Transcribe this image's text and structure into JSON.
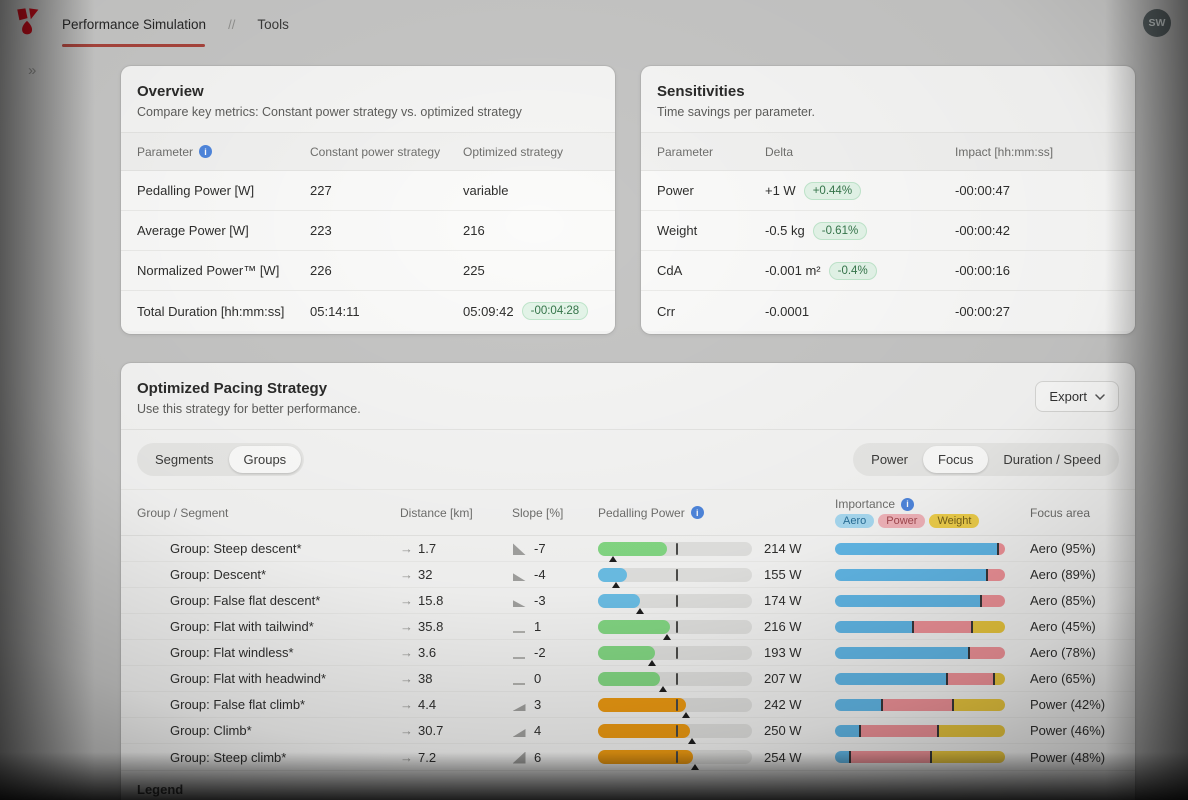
{
  "nav": {
    "tabs": [
      {
        "label": "Performance Simulation",
        "active": true
      },
      {
        "label": "Tools",
        "active": false
      }
    ],
    "separator": "//",
    "avatar": "SW"
  },
  "overview": {
    "title": "Overview",
    "subtitle": "Compare key metrics: Constant power strategy vs. optimized strategy",
    "columns": [
      "Parameter",
      "Constant power strategy",
      "Optimized strategy"
    ],
    "rows": [
      {
        "parameter": "Pedalling Power [W]",
        "constant": "227",
        "optimized": "variable",
        "badge": ""
      },
      {
        "parameter": "Average Power [W]",
        "constant": "223",
        "optimized": "216",
        "badge": ""
      },
      {
        "parameter": "Normalized Power™ [W]",
        "constant": "226",
        "optimized": "225",
        "badge": ""
      },
      {
        "parameter": "Total Duration [hh:mm:ss]",
        "constant": "05:14:11",
        "optimized": "05:09:42",
        "badge": "-00:04:28"
      }
    ]
  },
  "sensitivities": {
    "title": "Sensitivities",
    "subtitle": "Time savings per parameter.",
    "columns": [
      "Parameter",
      "Delta",
      "Impact [hh:mm:ss]"
    ],
    "rows": [
      {
        "parameter": "Power",
        "delta": "+1 W",
        "badge": "+0.44%",
        "impact": "-00:00:47"
      },
      {
        "parameter": "Weight",
        "delta": "-0.5 kg",
        "badge": "-0.61%",
        "impact": "-00:00:42"
      },
      {
        "parameter": "CdA",
        "delta": "-0.001 m²",
        "badge": "-0.4%",
        "impact": "-00:00:16"
      },
      {
        "parameter": "Crr",
        "delta": "-0.0001",
        "badge": "",
        "impact": "-00:00:27"
      }
    ]
  },
  "strategy": {
    "title": "Optimized Pacing Strategy",
    "subtitle": "Use this strategy for better performance.",
    "export_label": "Export",
    "view_toggle": [
      {
        "label": "Segments",
        "active": false
      },
      {
        "label": "Groups",
        "active": true
      }
    ],
    "metric_toggle": [
      {
        "label": "Power",
        "active": false
      },
      {
        "label": "Focus",
        "active": true
      },
      {
        "label": "Duration / Speed",
        "active": false
      }
    ],
    "columns": {
      "group": "Group / Segment",
      "distance": "Distance [km]",
      "slope": "Slope [%]",
      "power": "Pedalling Power",
      "importance": "Importance",
      "focus": "Focus area"
    },
    "importance_chips": [
      {
        "label": "Aero",
        "bg": "#a8daf2",
        "fg": "#2a7099"
      },
      {
        "label": "Power",
        "bg": "#f2b4ba",
        "fg": "#a3484f"
      },
      {
        "label": "Weight",
        "bg": "#f0d04b",
        "fg": "#77621a"
      }
    ],
    "importance_colors": {
      "aero": "#62b9e9",
      "power": "#f2949a",
      "weight": "#ecc93f"
    },
    "tick_pct": 50.5,
    "rows": [
      {
        "color": "#2f66b4",
        "label": "Group: Steep descent*",
        "distance": "1.7",
        "slope": "-7",
        "slope_type": "descent",
        "slope_h": 12,
        "power": "214 W",
        "fill_pct": 45,
        "marker_pct": 10,
        "fill_color": "#84d984",
        "importance": {
          "aero": 95,
          "power": 5,
          "weight": 0
        },
        "focus": "Aero (95%)"
      },
      {
        "color": "#4e93c8",
        "label": "Group: Descent*",
        "distance": "32",
        "slope": "-4",
        "slope_type": "descent",
        "slope_h": 8,
        "power": "155 W",
        "fill_pct": 19,
        "marker_pct": 12,
        "fill_color": "#6cc0e8",
        "importance": {
          "aero": 89,
          "power": 11,
          "weight": 0
        },
        "focus": "Aero (89%)"
      },
      {
        "color": "#92c6de",
        "label": "Group: False flat descent*",
        "distance": "15.8",
        "slope": "-3",
        "slope_type": "descent",
        "slope_h": 7,
        "power": "174 W",
        "fill_pct": 27,
        "marker_pct": 27,
        "fill_color": "#6cc0e8",
        "importance": {
          "aero": 85,
          "power": 15,
          "weight": 0
        },
        "focus": "Aero (85%)"
      },
      {
        "color": "#cfe4ec",
        "label": "Group: Flat with tailwind*",
        "distance": "35.8",
        "slope": "1",
        "slope_type": "flat",
        "slope_h": 2,
        "power": "216 W",
        "fill_pct": 47,
        "marker_pct": 45,
        "fill_color": "#84d984",
        "importance": {
          "aero": 45,
          "power": 35,
          "weight": 20
        },
        "focus": "Aero (45%)"
      },
      {
        "color": "#ece994",
        "label": "Group: Flat windless*",
        "distance": "3.6",
        "slope": "-2",
        "slope_type": "flat",
        "slope_h": 2,
        "power": "193 W",
        "fill_pct": 37,
        "marker_pct": 35,
        "fill_color": "#84d984",
        "importance": {
          "aero": 78,
          "power": 22,
          "weight": 0
        },
        "focus": "Aero (78%)"
      },
      {
        "color": "#e9cd72",
        "label": "Group: Flat with headwind*",
        "distance": "38",
        "slope": "0",
        "slope_type": "flat",
        "slope_h": 2,
        "power": "207 W",
        "fill_pct": 40,
        "marker_pct": 42,
        "fill_color": "#84d984",
        "importance": {
          "aero": 65,
          "power": 28,
          "weight": 7
        },
        "focus": "Aero (65%)"
      },
      {
        "color": "#eda250",
        "label": "Group: False flat climb*",
        "distance": "4.4",
        "slope": "3",
        "slope_type": "climb",
        "slope_h": 7,
        "power": "242 W",
        "fill_pct": 57,
        "marker_pct": 57,
        "fill_color": "#f09c12",
        "importance": {
          "aero": 27,
          "power": 42,
          "weight": 31
        },
        "focus": "Power (42%)"
      },
      {
        "color": "#e2663c",
        "label": "Group: Climb*",
        "distance": "30.7",
        "slope": "4",
        "slope_type": "climb",
        "slope_h": 8,
        "power": "250 W",
        "fill_pct": 60,
        "marker_pct": 61,
        "fill_color": "#f09c12",
        "importance": {
          "aero": 14,
          "power": 46,
          "weight": 40
        },
        "focus": "Power (46%)"
      },
      {
        "color": "#cb2b1e",
        "label": "Group: Steep climb*",
        "distance": "7.2",
        "slope": "6",
        "slope_type": "climb",
        "slope_h": 12,
        "power": "254 W",
        "fill_pct": 62,
        "marker_pct": 63,
        "fill_color": "#f09c12",
        "importance": {
          "aero": 8,
          "power": 48,
          "weight": 44
        },
        "focus": "Power (48%)"
      }
    ],
    "legend_label": "Legend"
  },
  "colors": {
    "accent_red": "#c20d1a",
    "tab_underline": "#a8443c",
    "badge_green_bg": "#e4f5e9",
    "badge_green_text": "#35754a"
  }
}
